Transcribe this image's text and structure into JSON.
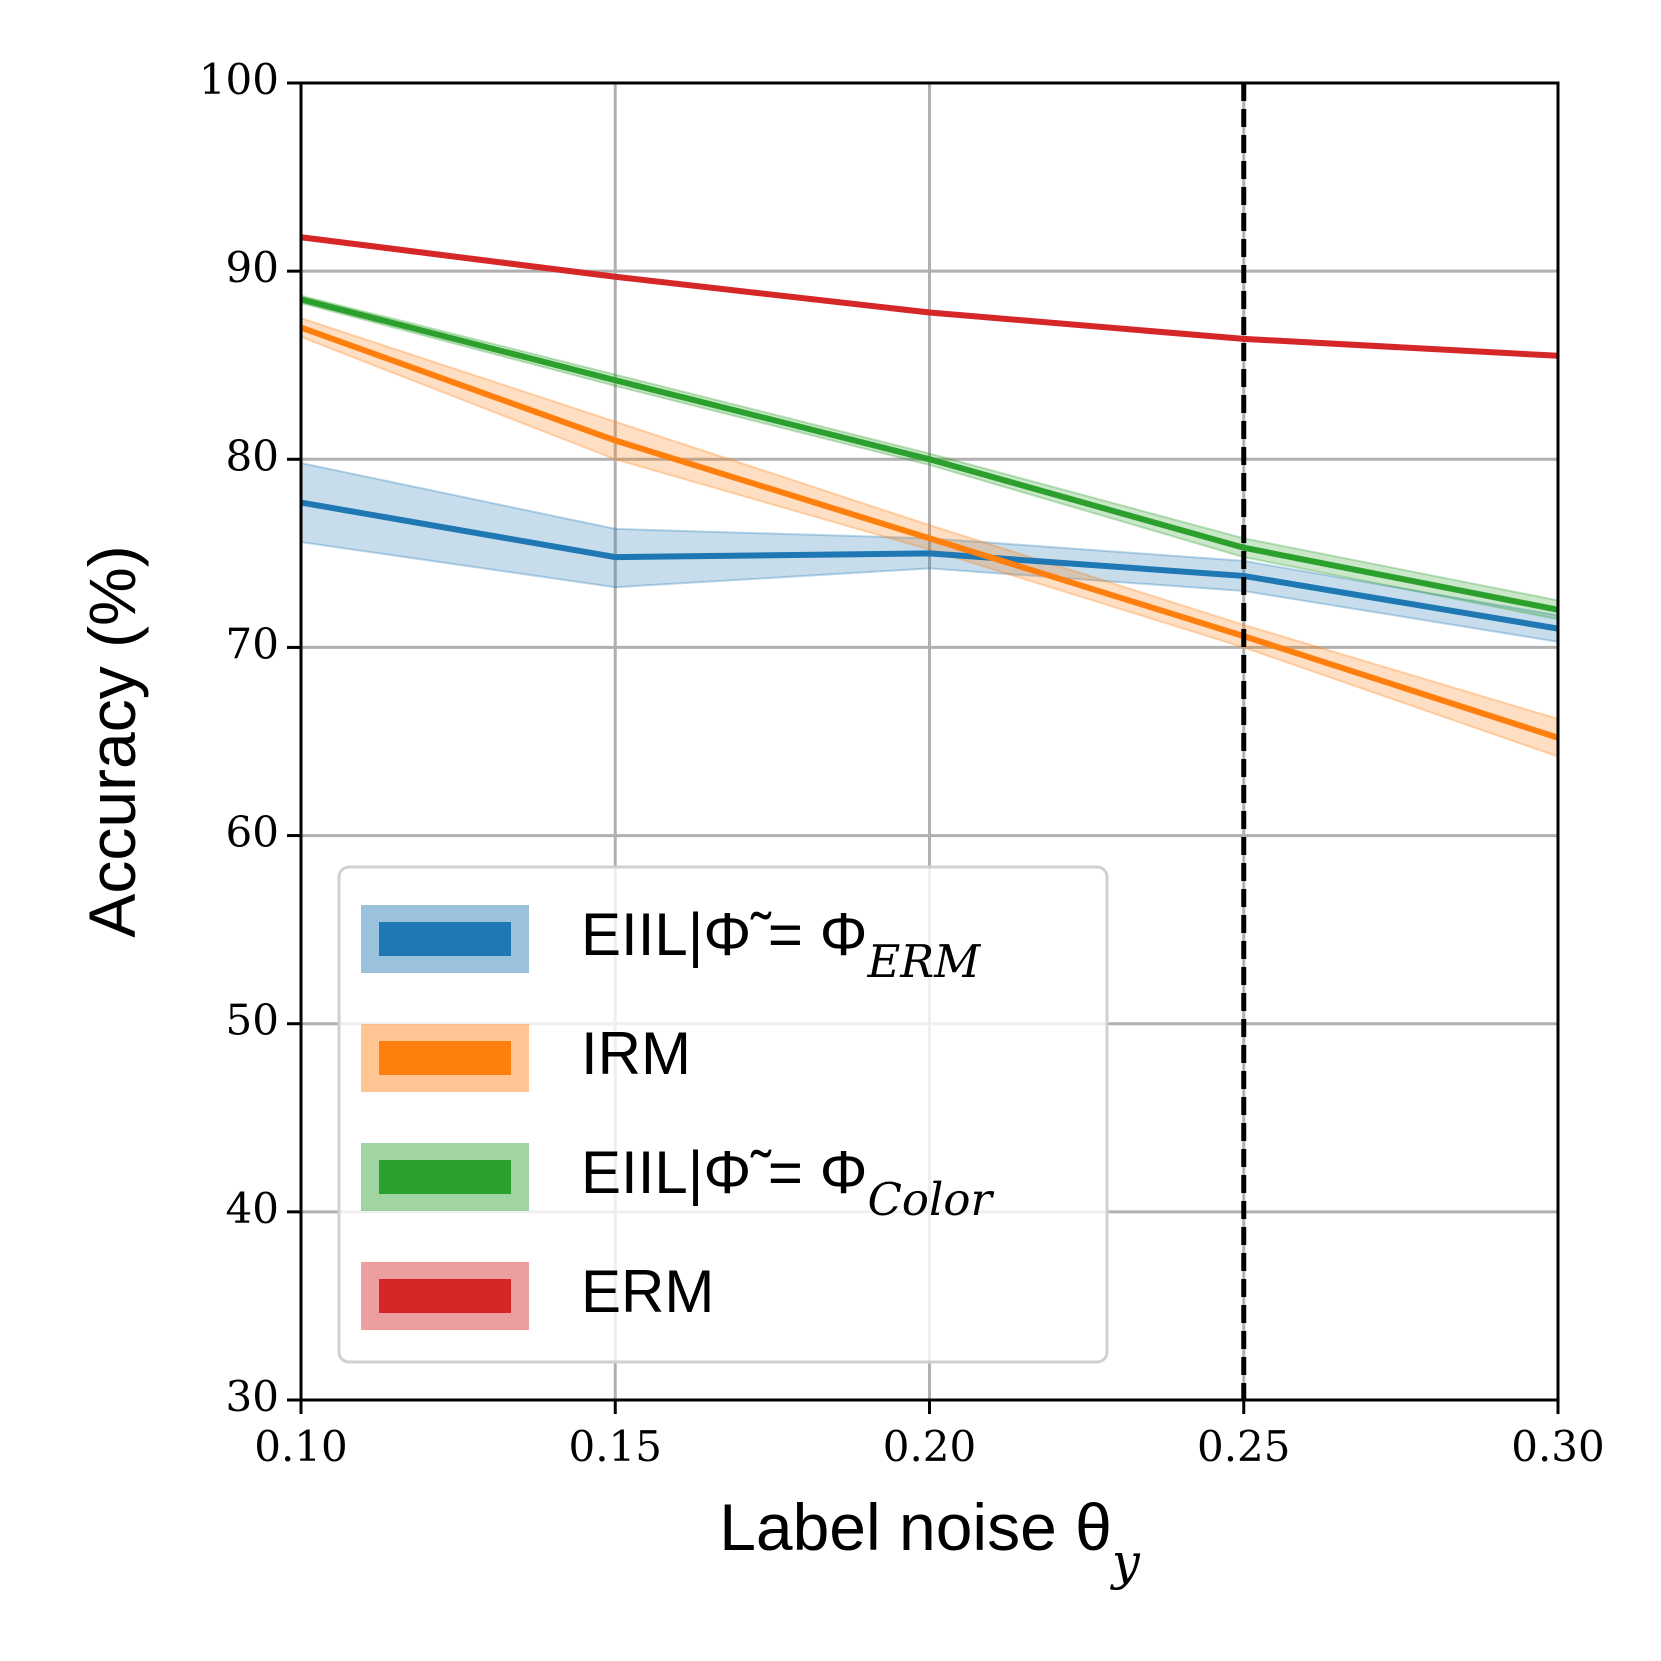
{
  "chart_data": {
    "type": "line",
    "x": [
      0.1,
      0.15,
      0.2,
      0.25,
      0.3
    ],
    "xlabel": "Label noise θ_y",
    "ylabel": "Accuracy (%)",
    "xlim": [
      0.1,
      0.3
    ],
    "ylim": [
      30,
      100
    ],
    "xticks": [
      {
        "value": 0.1,
        "label": "0.10"
      },
      0.15,
      {
        "value": 0.2,
        "label": "0.20"
      },
      0.25,
      {
        "value": 0.3,
        "label": "0.30"
      }
    ],
    "yticks": [
      30,
      40,
      50,
      60,
      70,
      80,
      90,
      100
    ],
    "grid": true,
    "vline": 0.25,
    "legend": "lower left",
    "series": [
      {
        "name": "EIIL|Φ̃ = Φ_ERM",
        "color": "#1f77b4",
        "values": [
          77.7,
          74.8,
          75.0,
          73.8,
          71.0
        ],
        "lower": [
          75.6,
          73.2,
          74.2,
          73.0,
          70.3
        ],
        "upper": [
          79.8,
          76.3,
          75.8,
          74.6,
          71.7
        ]
      },
      {
        "name": "IRM",
        "color": "#ff7f0e",
        "values": [
          87.0,
          81.0,
          75.8,
          70.6,
          65.2
        ],
        "lower": [
          86.5,
          80.0,
          75.2,
          70.0,
          64.2
        ],
        "upper": [
          87.5,
          82.0,
          76.5,
          71.2,
          66.2
        ]
      },
      {
        "name": "EIIL|Φ̃ = Φ_Color",
        "color": "#2ca02c",
        "values": [
          88.5,
          84.2,
          80.0,
          75.3,
          72.0
        ],
        "lower": [
          88.3,
          83.9,
          79.7,
          74.8,
          71.5
        ],
        "upper": [
          88.7,
          84.5,
          80.3,
          75.8,
          72.5
        ]
      },
      {
        "name": "ERM",
        "color": "#d62728",
        "values": [
          91.8,
          89.7,
          87.8,
          86.4,
          85.5
        ],
        "lower": [
          91.7,
          89.6,
          87.7,
          86.3,
          85.4
        ],
        "upper": [
          91.9,
          89.8,
          87.9,
          86.5,
          85.6
        ]
      }
    ]
  }
}
